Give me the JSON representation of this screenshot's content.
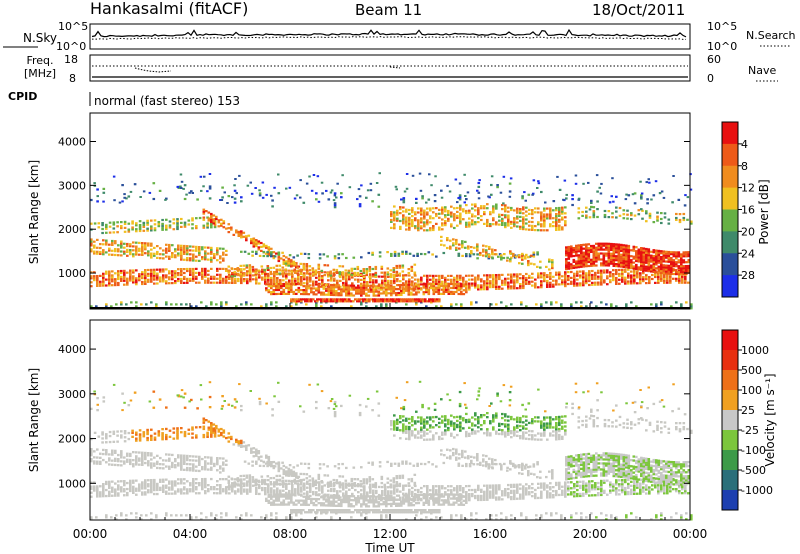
{
  "header": {
    "station": "Hankasalmi (fitACF)",
    "beam": "Beam 11",
    "date": "18/Oct/2011"
  },
  "status_panels": {
    "nsky_label": "N.Sky",
    "nsky_ticks": [
      "10^5",
      "10^0"
    ],
    "nsearch_label": "N.Search",
    "nsearch_ticks": [
      "10^5",
      "10^0"
    ],
    "freq_label_1": "Freq.",
    "freq_label_2": "[MHz]",
    "freq_ticks": [
      "18",
      "8"
    ],
    "nave_label": "Nave",
    "nave_ticks": [
      "60",
      "0"
    ],
    "cpid_label": "CPID",
    "cpid_text": "normal (fast stereo) 153"
  },
  "colors": {
    "power_scale": [
      "#1c2ee8",
      "#2a4f9a",
      "#3f8a6a",
      "#66b044",
      "#f0c020",
      "#f08c1e",
      "#ee5a18",
      "#e81010"
    ],
    "velocity_scale": [
      "#1c3fb0",
      "#2a6f7a",
      "#3c9a48",
      "#7cc63c",
      "#c8c8c8",
      "#f0a020",
      "#ee7018",
      "#e83010",
      "#e81010"
    ],
    "velocity_gray": "#c8c8c3"
  },
  "chart_data": [
    {
      "type": "heatmap",
      "name": "power",
      "ylabel": "Slant Range [km]",
      "xlabel": "Time UT",
      "ylim": [
        180,
        4650
      ],
      "xlim": [
        0,
        24
      ],
      "y_ticks": [
        "1000",
        "2000",
        "3000",
        "4000"
      ],
      "x_ticks": [
        "00:00",
        "04:00",
        "08:00",
        "12:00",
        "16:00",
        "20:00",
        "00:00"
      ],
      "colorbar_label": "Power [dB]",
      "colorbar_ticks": [
        "4",
        "8",
        "12",
        "16",
        "20",
        "24",
        "28"
      ],
      "colorbar_range": [
        0,
        32
      ]
    },
    {
      "type": "heatmap",
      "name": "velocity",
      "ylabel": "Slant Range [km]",
      "xlabel": "Time UT",
      "ylim": [
        180,
        4650
      ],
      "xlim": [
        0,
        24
      ],
      "y_ticks": [
        "1000",
        "2000",
        "3000",
        "4000"
      ],
      "x_ticks": [
        "00:00",
        "04:00",
        "08:00",
        "12:00",
        "16:00",
        "20:00",
        "00:00"
      ],
      "colorbar_label": "Velocity [m s⁻¹]",
      "colorbar_ticks": [
        "1000",
        "500",
        "100",
        "25",
        "-25",
        "-100",
        "-500",
        "-1000"
      ]
    }
  ]
}
